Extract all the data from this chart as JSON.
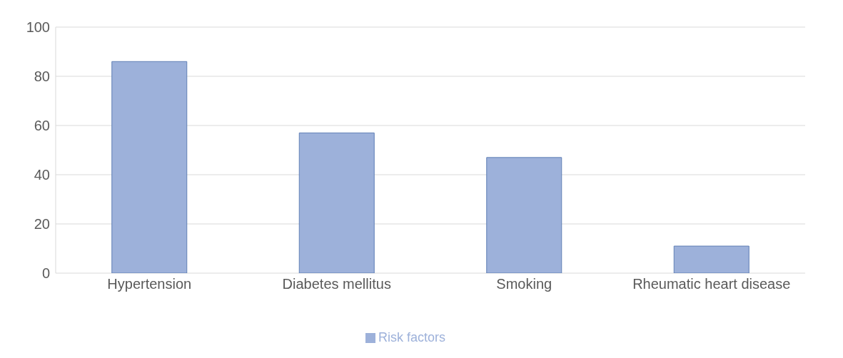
{
  "chart_data": {
    "type": "bar",
    "categories": [
      "Hypertension",
      "Diabetes mellitus",
      "Smoking",
      "Rheumatic heart disease"
    ],
    "series": [
      {
        "name": "Risk factors",
        "color": "#9db1da",
        "values": [
          86,
          57,
          47,
          11
        ]
      }
    ],
    "ylim": [
      0,
      100
    ],
    "yticks": [
      0,
      20,
      40,
      60,
      80,
      100
    ],
    "grid": "y",
    "legend": "bottom"
  }
}
